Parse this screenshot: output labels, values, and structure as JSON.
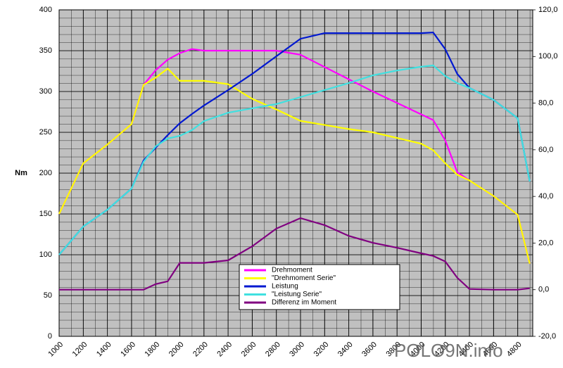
{
  "chart_data": {
    "type": "line",
    "y_label": "Nm",
    "watermark": "POLO9N.info",
    "x": [
      1000,
      1200,
      1400,
      1600,
      1700,
      1800,
      1900,
      2000,
      2100,
      2200,
      2400,
      2600,
      2800,
      3000,
      3200,
      3400,
      3600,
      3800,
      4000,
      4100,
      4200,
      4300,
      4400,
      4600,
      4800,
      4900
    ],
    "xlim": [
      1000,
      4925
    ],
    "xticks": [
      1000,
      1200,
      1400,
      1600,
      1800,
      2000,
      2200,
      2400,
      2600,
      2800,
      3000,
      3200,
      3400,
      3600,
      3800,
      4000,
      4200,
      4400,
      4600,
      4800
    ],
    "ylim": [
      0,
      400
    ],
    "yticks": [
      0,
      50,
      100,
      150,
      200,
      250,
      300,
      350,
      400
    ],
    "y2lim": [
      -20,
      120
    ],
    "y2ticks": [
      {
        "value": -20,
        "label": "-20,0"
      },
      {
        "value": 0,
        "label": "0,0"
      },
      {
        "value": 20,
        "label": "20,0"
      },
      {
        "value": 40,
        "label": "40,0"
      },
      {
        "value": 60,
        "label": "60,0"
      },
      {
        "value": 80,
        "label": "80,0"
      },
      {
        "value": 100,
        "label": "100,0"
      },
      {
        "value": 120,
        "label": "120,0"
      }
    ],
    "grid": true,
    "series": [
      {
        "name": "Drehmoment",
        "color": "#ff00ff",
        "values": [
          150,
          212,
          235,
          260,
          308,
          326,
          339,
          347,
          352,
          350,
          350,
          350,
          350,
          345,
          330,
          315,
          300,
          286,
          272,
          265,
          240,
          201,
          191,
          172,
          149,
          89
        ]
      },
      {
        "name": "\"Drehmoment Serie\"",
        "color": "#ffff00",
        "values": [
          150,
          212,
          235,
          260,
          308,
          317,
          328,
          313,
          313,
          313,
          309,
          291,
          278,
          264,
          259,
          254,
          250,
          243,
          236,
          228,
          212,
          198,
          191,
          172,
          149,
          89
        ]
      },
      {
        "name": "Leistung",
        "color": "#0018d0",
        "axis": "y2",
        "values": [
          15.0,
          27.1,
          34.3,
          43.4,
          55.4,
          60.9,
          66.3,
          71.4,
          75.3,
          79.0,
          85.6,
          92.5,
          100.1,
          107.6,
          110.0,
          110.0,
          110.0,
          110.0,
          110.0,
          110.3,
          103.1,
          92.5,
          86.5,
          81.4,
          73.5,
          46.4
        ]
      },
      {
        "name": "\"Leistung Serie\"",
        "color": "#40e0e0",
        "axis": "y2",
        "values": [
          15.0,
          27.1,
          34.3,
          43.4,
          54.8,
          61.5,
          64.8,
          66.0,
          68.4,
          72.3,
          75.9,
          77.8,
          79.6,
          82.6,
          85.6,
          88.6,
          91.9,
          94.0,
          95.6,
          96.2,
          91.6,
          88.6,
          86.5,
          81.4,
          73.5,
          46.4
        ]
      },
      {
        "name": "Differenz im Moment",
        "color": "#800080",
        "axis": "y2",
        "values": [
          0,
          0,
          0,
          0,
          0,
          2.4,
          3.6,
          11.5,
          11.5,
          11.5,
          12.6,
          18.6,
          26.2,
          30.7,
          27.7,
          23.1,
          20.1,
          18.0,
          15.6,
          14.5,
          12.1,
          5.1,
          0.3,
          0,
          0,
          0.6
        ]
      }
    ]
  }
}
